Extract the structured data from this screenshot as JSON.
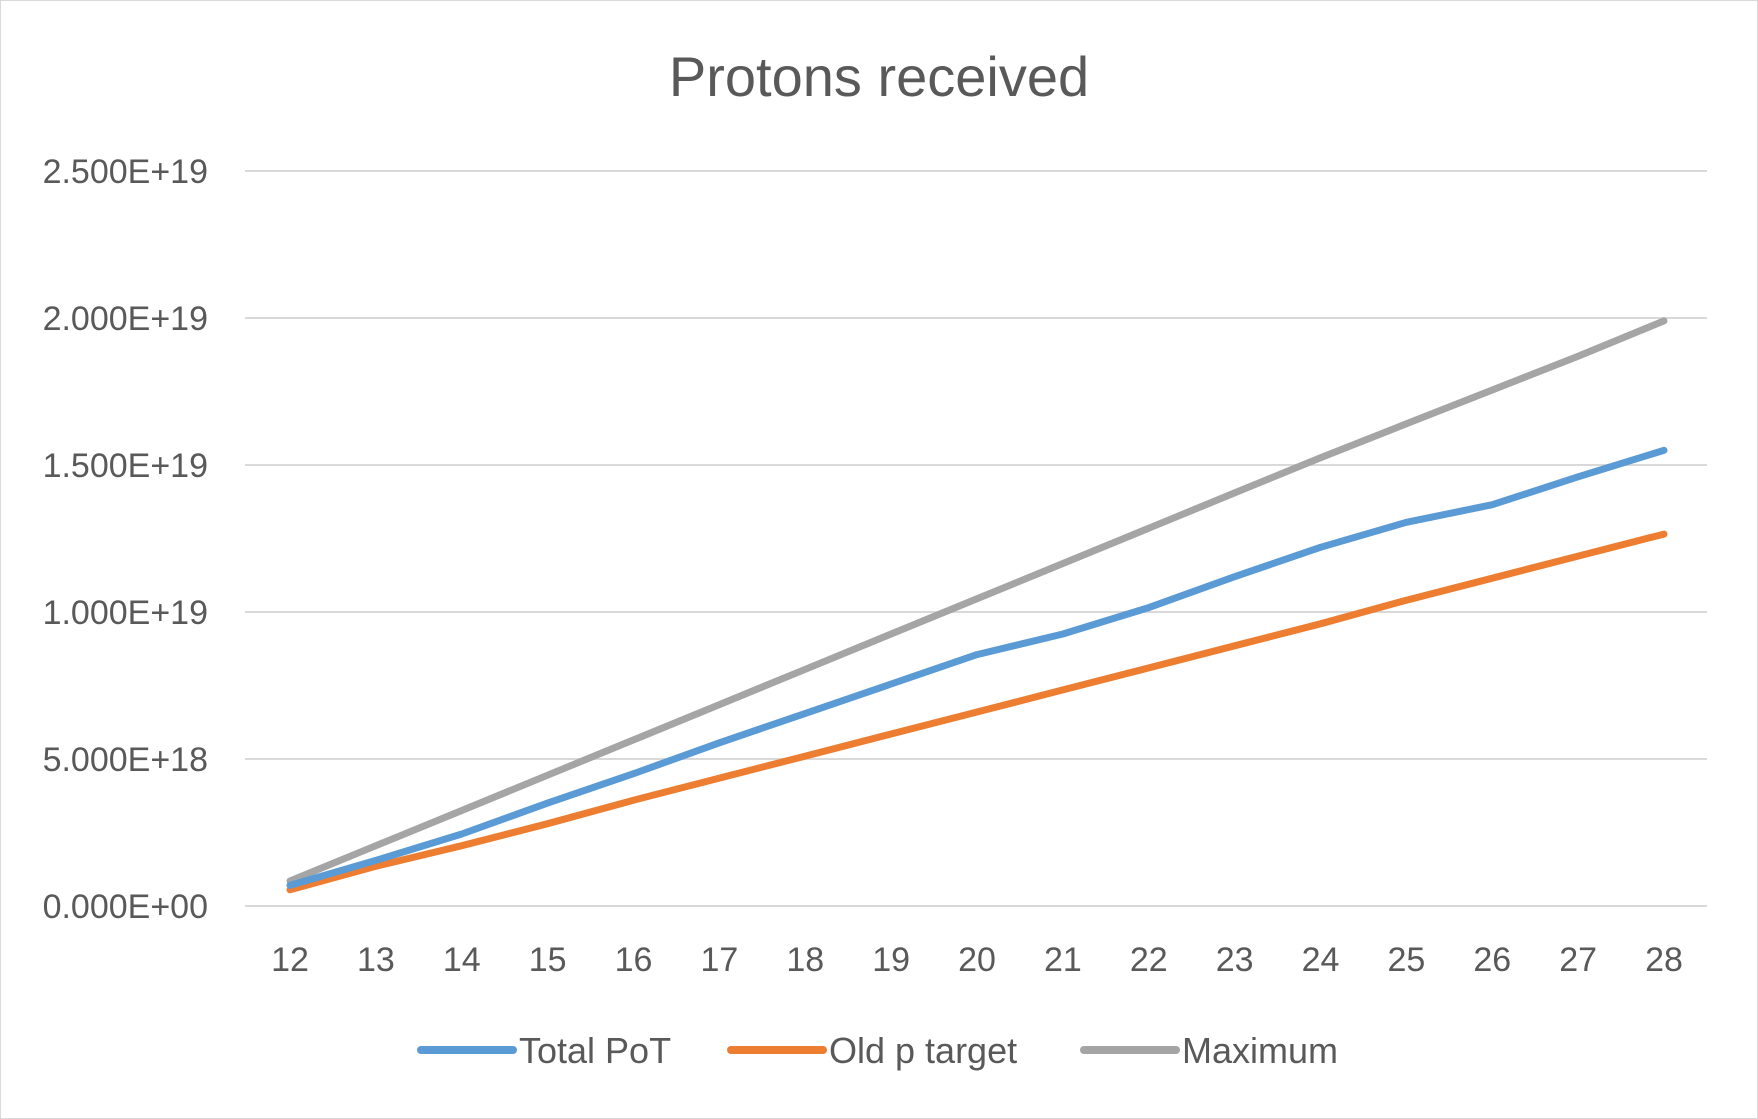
{
  "chart_data": {
    "type": "line",
    "title": "Protons received",
    "xlabel": "",
    "ylabel": "",
    "x": [
      12,
      13,
      14,
      15,
      16,
      17,
      18,
      19,
      20,
      21,
      22,
      23,
      24,
      25,
      26,
      27,
      28
    ],
    "x_tick_labels": [
      "12",
      "13",
      "14",
      "15",
      "16",
      "17",
      "18",
      "19",
      "20",
      "21",
      "22",
      "23",
      "24",
      "25",
      "26",
      "27",
      "28"
    ],
    "ylim": [
      0,
      2.5e+19
    ],
    "y_ticks": [
      0,
      5e+18,
      1e+19,
      1.5e+19,
      2e+19,
      2.5e+19
    ],
    "y_tick_labels": [
      "0.000E+00",
      "5.000E+18",
      "1.000E+19",
      "1.500E+19",
      "2.000E+19",
      "2.500E+19"
    ],
    "grid": true,
    "legend_position": "bottom",
    "series": [
      {
        "name": "Total PoT",
        "color": "#5b9bd5",
        "values": [
          7e+17,
          1.55e+18,
          2.45e+18,
          3.5e+18,
          4.5e+18,
          5.55e+18,
          6.55e+18,
          7.55e+18,
          8.55e+18,
          9.25e+18,
          1.015e+19,
          1.12e+19,
          1.22e+19,
          1.305e+19,
          1.365e+19,
          1.46e+19,
          1.55e+19
        ]
      },
      {
        "name": "Old p target",
        "color": "#ed7d31",
        "values": [
          5.5e+17,
          1.35e+18,
          2.05e+18,
          2.8e+18,
          3.6e+18,
          4.35e+18,
          5.1e+18,
          5.85e+18,
          6.6e+18,
          7.35e+18,
          8.1e+18,
          8.85e+18,
          9.6e+18,
          1.04e+19,
          1.115e+19,
          1.19e+19,
          1.265e+19
        ]
      },
      {
        "name": "Maximum",
        "color": "#a5a5a5",
        "values": [
          8.5e+17,
          2.05e+18,
          3.25e+18,
          4.45e+18,
          5.65e+18,
          6.85e+18,
          8.05e+18,
          9.25e+18,
          1.045e+19,
          1.165e+19,
          1.285e+19,
          1.405e+19,
          1.525e+19,
          1.64e+19,
          1.755e+19,
          1.87e+19,
          1.99e+19
        ]
      }
    ]
  }
}
